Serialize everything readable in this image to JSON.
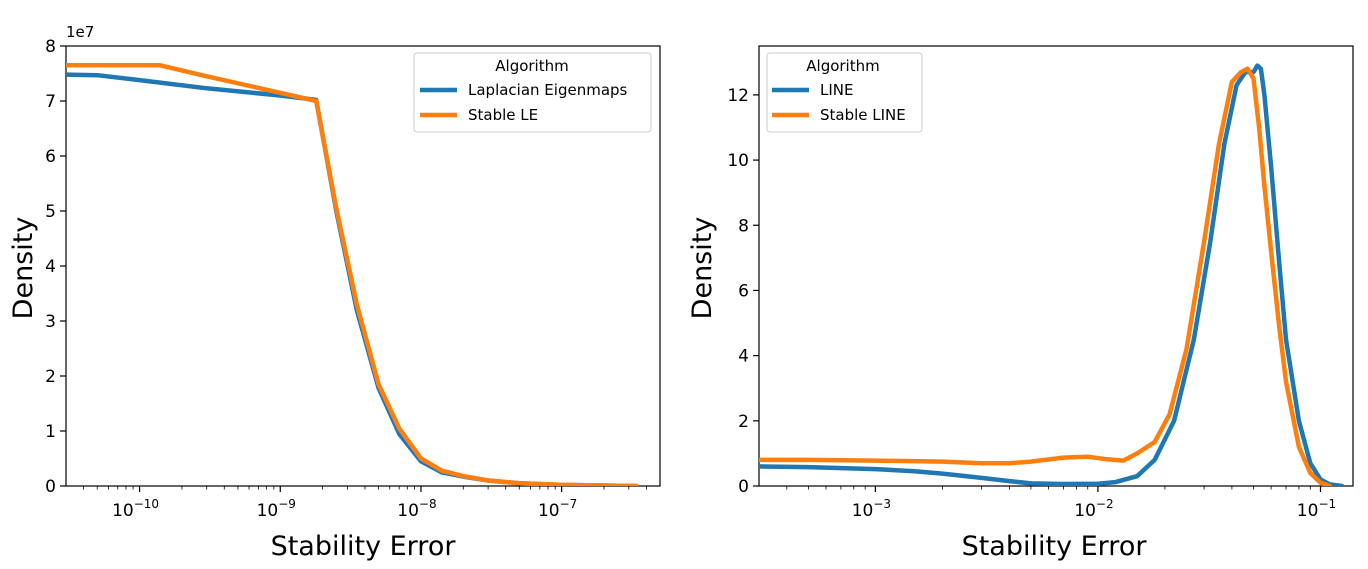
{
  "chart_data": [
    {
      "type": "line",
      "xscale": "log",
      "xlabel": "Stability Error",
      "ylabel": "Density",
      "y_offset_label": "1e7",
      "xlim": [
        3e-11,
        5e-07
      ],
      "ylim": [
        0,
        8
      ],
      "x_ticks": [
        {
          "value": 1e-10,
          "base": "10",
          "exp": "−10"
        },
        {
          "value": 1e-09,
          "base": "10",
          "exp": "−9"
        },
        {
          "value": 1e-08,
          "base": "10",
          "exp": "−8"
        },
        {
          "value": 1e-07,
          "base": "10",
          "exp": "−7"
        }
      ],
      "y_ticks": [
        "0",
        "1",
        "2",
        "3",
        "4",
        "5",
        "6",
        "7",
        "8"
      ],
      "legend": {
        "title": "Algorithm",
        "location": "upper right"
      },
      "series": [
        {
          "name": "Laplacian Eigenmaps",
          "color": "#1f77b4",
          "x": [
            3e-11,
            5e-11,
            1e-10,
            3e-10,
            1e-09,
            1.8e-09,
            2.5e-09,
            3.5e-09,
            5e-09,
            7e-09,
            1e-08,
            1.4e-08,
            2e-08,
            3e-08,
            5e-08,
            1e-07,
            3.4e-07
          ],
          "y": [
            7.48,
            7.47,
            7.38,
            7.23,
            7.1,
            7.02,
            5.0,
            3.2,
            1.78,
            0.95,
            0.45,
            0.25,
            0.17,
            0.1,
            0.05,
            0.02,
            0.0
          ]
        },
        {
          "name": "Stable LE",
          "color": "#ff7f0e",
          "x": [
            3e-11,
            1.4e-10,
            3e-10,
            1e-09,
            1.8e-09,
            2.5e-09,
            3.5e-09,
            5e-09,
            7e-09,
            1e-08,
            1.4e-08,
            2e-08,
            3e-08,
            5e-08,
            1e-07,
            3.4e-07
          ],
          "y": [
            7.65,
            7.65,
            7.45,
            7.15,
            7.0,
            5.05,
            3.3,
            1.85,
            1.05,
            0.5,
            0.28,
            0.18,
            0.1,
            0.05,
            0.02,
            0.0
          ]
        }
      ]
    },
    {
      "type": "line",
      "xscale": "log",
      "xlabel": "Stability Error",
      "ylabel": "Density",
      "xlim": [
        0.0003,
        0.14
      ],
      "ylim": [
        0,
        13.5
      ],
      "x_ticks": [
        {
          "value": 0.001,
          "base": "10",
          "exp": "−3"
        },
        {
          "value": 0.01,
          "base": "10",
          "exp": "−2"
        },
        {
          "value": 0.1,
          "base": "10",
          "exp": "−1"
        }
      ],
      "y_ticks": [
        "0",
        "2",
        "4",
        "6",
        "8",
        "10",
        "12"
      ],
      "legend": {
        "title": "Algorithm",
        "location": "upper left"
      },
      "series": [
        {
          "name": "LINE",
          "color": "#1f77b4",
          "x": [
            0.0003,
            0.0005,
            0.001,
            0.0015,
            0.002,
            0.003,
            0.004,
            0.005,
            0.007,
            0.01,
            0.012,
            0.015,
            0.018,
            0.022,
            0.027,
            0.032,
            0.037,
            0.042,
            0.046,
            0.05,
            0.052,
            0.054,
            0.056,
            0.06,
            0.065,
            0.07,
            0.08,
            0.09,
            0.1,
            0.11,
            0.125
          ],
          "y": [
            0.6,
            0.58,
            0.52,
            0.45,
            0.38,
            0.25,
            0.15,
            0.08,
            0.06,
            0.07,
            0.12,
            0.3,
            0.8,
            2.0,
            4.5,
            7.5,
            10.5,
            12.3,
            12.7,
            12.7,
            12.9,
            12.8,
            12.0,
            9.8,
            7.0,
            4.5,
            2.0,
            0.7,
            0.2,
            0.05,
            0.0
          ]
        },
        {
          "name": "Stable LINE",
          "color": "#ff7f0e",
          "x": [
            0.0003,
            0.0005,
            0.001,
            0.002,
            0.003,
            0.004,
            0.005,
            0.007,
            0.009,
            0.011,
            0.013,
            0.015,
            0.018,
            0.021,
            0.025,
            0.03,
            0.035,
            0.04,
            0.044,
            0.047,
            0.05,
            0.053,
            0.056,
            0.06,
            0.065,
            0.07,
            0.08,
            0.09,
            0.1,
            0.11
          ],
          "y": [
            0.8,
            0.8,
            0.78,
            0.75,
            0.7,
            0.7,
            0.75,
            0.87,
            0.9,
            0.82,
            0.78,
            1.0,
            1.35,
            2.2,
            4.2,
            7.5,
            10.5,
            12.4,
            12.7,
            12.8,
            12.5,
            11.0,
            9.2,
            7.2,
            5.0,
            3.2,
            1.2,
            0.4,
            0.1,
            0.0
          ]
        }
      ]
    }
  ]
}
